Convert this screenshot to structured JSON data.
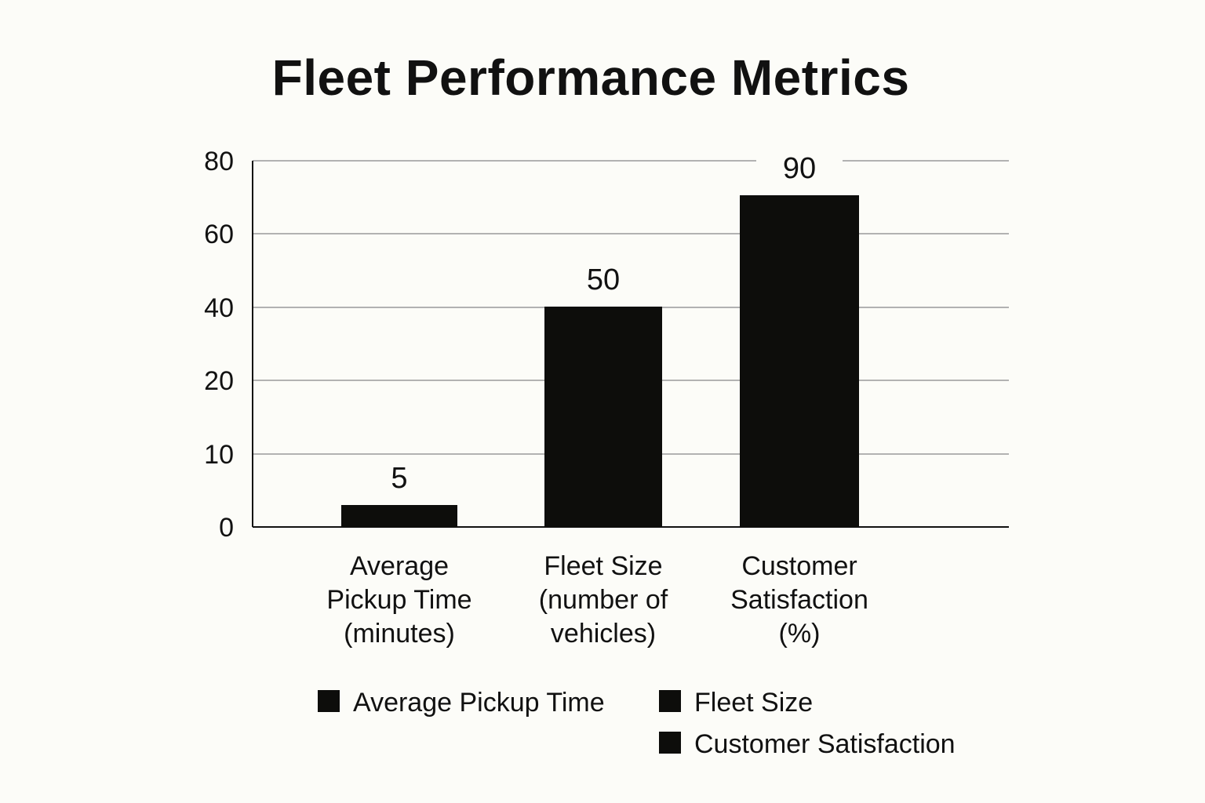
{
  "chart_data": {
    "type": "bar",
    "title": "Fleet Performance Metrics",
    "categories": [
      "Average Pickup Time (minutes)",
      "Fleet Size (number of vehicles)",
      "Customer Satisfaction (%)"
    ],
    "category_lines": [
      [
        "Average",
        "Pickup Time",
        "(minutes)"
      ],
      [
        "Fleet Size",
        "(number of",
        "vehicles)"
      ],
      [
        "Customer",
        "Satisfaction",
        "(%)"
      ]
    ],
    "values": [
      5,
      50,
      90
    ],
    "value_labels": [
      "5",
      "50",
      "90"
    ],
    "y_ticks": [
      0,
      10,
      20,
      40,
      60,
      80
    ],
    "y_tick_labels": [
      "0",
      "10",
      "20",
      "40",
      "60",
      "80"
    ],
    "xlabel": "",
    "ylabel": "",
    "grid": true,
    "legend_position": "bottom",
    "legend": [
      "Average Pickup Time",
      "Fleet Size",
      "Customer Satisfaction"
    ],
    "bar_color": "#0d0d0b",
    "grid_color": "#9a9a9a",
    "axis_color": "#111111",
    "background": "#fcfcf8"
  }
}
